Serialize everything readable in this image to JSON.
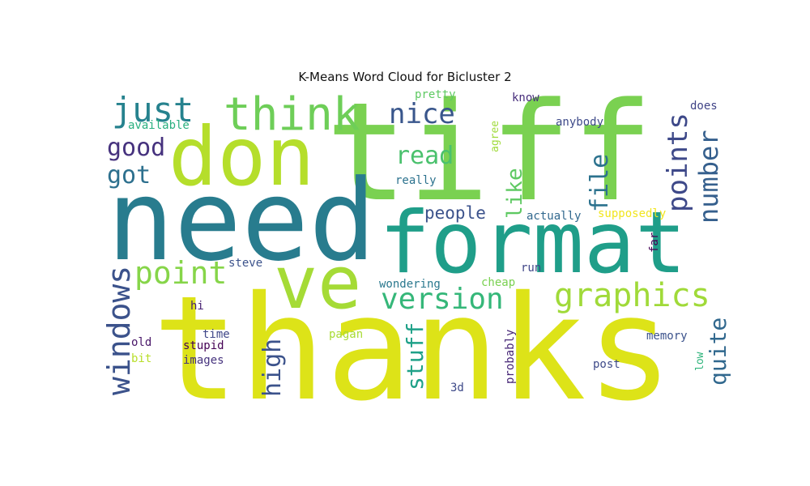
{
  "title": "K-Means Word Cloud for Bicluster 2",
  "words": [
    {
      "text": "thanks",
      "color": "#dde318"
    },
    {
      "text": "tiff",
      "color": "#7ad151"
    },
    {
      "text": "need",
      "color": "#287c8e"
    },
    {
      "text": "format",
      "color": "#1f9e89"
    },
    {
      "text": "don",
      "color": "#b5de2b"
    },
    {
      "text": "ve",
      "color": "#a5db36"
    },
    {
      "text": "think",
      "color": "#6ece58"
    },
    {
      "text": "graphics",
      "color": "#a0da39"
    },
    {
      "text": "just",
      "color": "#26828e"
    },
    {
      "text": "point",
      "color": "#86d549"
    },
    {
      "text": "version",
      "color": "#35b779"
    },
    {
      "text": "windows",
      "color": "#3b528b"
    },
    {
      "text": "nice",
      "color": "#39568c"
    },
    {
      "text": "read",
      "color": "#4ac16d"
    },
    {
      "text": "points",
      "color": "#3e4989"
    },
    {
      "text": "number",
      "color": "#355f8d"
    },
    {
      "text": "file",
      "color": "#2c728e"
    },
    {
      "text": "like",
      "color": "#5ec962"
    },
    {
      "text": "high",
      "color": "#3b528b"
    },
    {
      "text": "quite",
      "color": "#31688e"
    },
    {
      "text": "stuff",
      "color": "#1fa188"
    },
    {
      "text": "good",
      "color": "#46327e"
    },
    {
      "text": "got",
      "color": "#2d708e"
    },
    {
      "text": "people",
      "color": "#3b528b"
    },
    {
      "text": "available",
      "color": "#29af7f"
    },
    {
      "text": "pretty",
      "color": "#5ec962"
    },
    {
      "text": "know",
      "color": "#472d7b"
    },
    {
      "text": "agree",
      "color": "#9fda3a"
    },
    {
      "text": "does",
      "color": "#414487"
    },
    {
      "text": "anybody",
      "color": "#3e4a89"
    },
    {
      "text": "really",
      "color": "#2c728e"
    },
    {
      "text": "actually",
      "color": "#31688e"
    },
    {
      "text": "supposedly",
      "color": "#f1e51d"
    },
    {
      "text": "far",
      "color": "#440154"
    },
    {
      "text": "steve",
      "color": "#3b528b"
    },
    {
      "text": "run",
      "color": "#404688"
    },
    {
      "text": "wondering",
      "color": "#2a788e"
    },
    {
      "text": "cheap",
      "color": "#7ad151"
    },
    {
      "text": "hi",
      "color": "#482173"
    },
    {
      "text": "time",
      "color": "#3f4788"
    },
    {
      "text": "pagan",
      "color": "#a8db34"
    },
    {
      "text": "probably",
      "color": "#482878"
    },
    {
      "text": "memory",
      "color": "#3b528b"
    },
    {
      "text": "old",
      "color": "#481668"
    },
    {
      "text": "stupid",
      "color": "#440154"
    },
    {
      "text": "bit",
      "color": "#b8de29"
    },
    {
      "text": "images",
      "color": "#46337e"
    },
    {
      "text": "post",
      "color": "#3e4a89"
    },
    {
      "text": "low",
      "color": "#2fb47c"
    },
    {
      "text": "3d",
      "color": "#3e4a89"
    }
  ]
}
